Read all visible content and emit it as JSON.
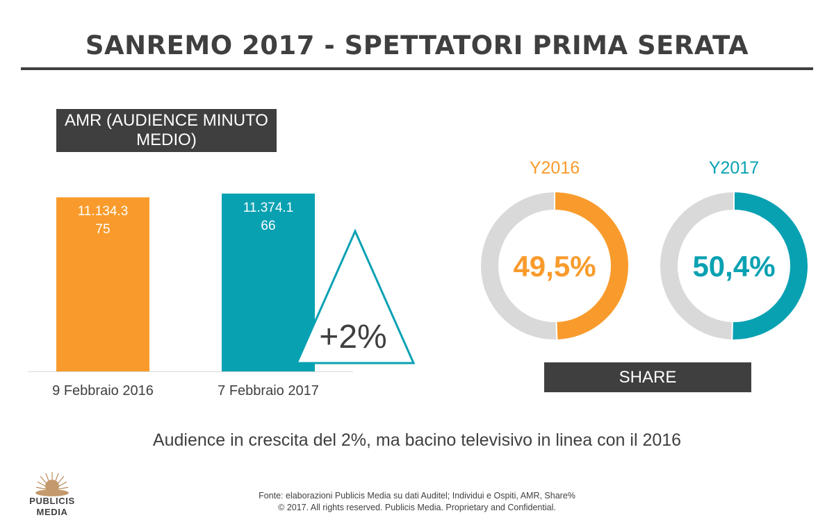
{
  "title": "SANREMO 2017 - SPETTATORI PRIMA SERATA",
  "amr_label": "AMR (AUDIENCE MINUTO MEDIO)",
  "share_label": "SHARE",
  "subtitle": "Audience in crescita del 2%, ma bacino televisivo in linea con il 2016",
  "footer": {
    "line1": "Fonte: elaborazioni Publicis Media su dati Auditel; Individui e Ospiti, AMR, Share%",
    "line2": "© 2017. All rights reserved. Publicis Media. Proprietary and Confidential."
  },
  "logo": {
    "line1": "PUBLICIS",
    "line2": "MEDIA"
  },
  "colors": {
    "orange": "#f99b2c",
    "teal": "#08a1b2",
    "grey_ring": "#d9d9d9",
    "dark": "#3f3f3f"
  },
  "chart_data": [
    {
      "type": "bar",
      "categories": [
        "9 Febbraio 2016",
        "7 Febbraio 2017"
      ],
      "values": [
        11134375,
        11374166
      ],
      "data_labels": [
        [
          "11.134.3",
          "75"
        ],
        [
          "11.374.1",
          "66"
        ]
      ],
      "colors": [
        "#f99b2c",
        "#08a1b2"
      ],
      "ylim": [
        0,
        11500000
      ],
      "annotation": "+2%"
    },
    {
      "type": "pie",
      "name": "Y2016",
      "label": "Y2016",
      "value_label": "49,5%",
      "value": 49.5,
      "color": "#f99b2c"
    },
    {
      "type": "pie",
      "name": "Y2017",
      "label": "Y2017",
      "value_label": "50,4%",
      "value": 50.4,
      "color": "#08a1b2"
    }
  ]
}
